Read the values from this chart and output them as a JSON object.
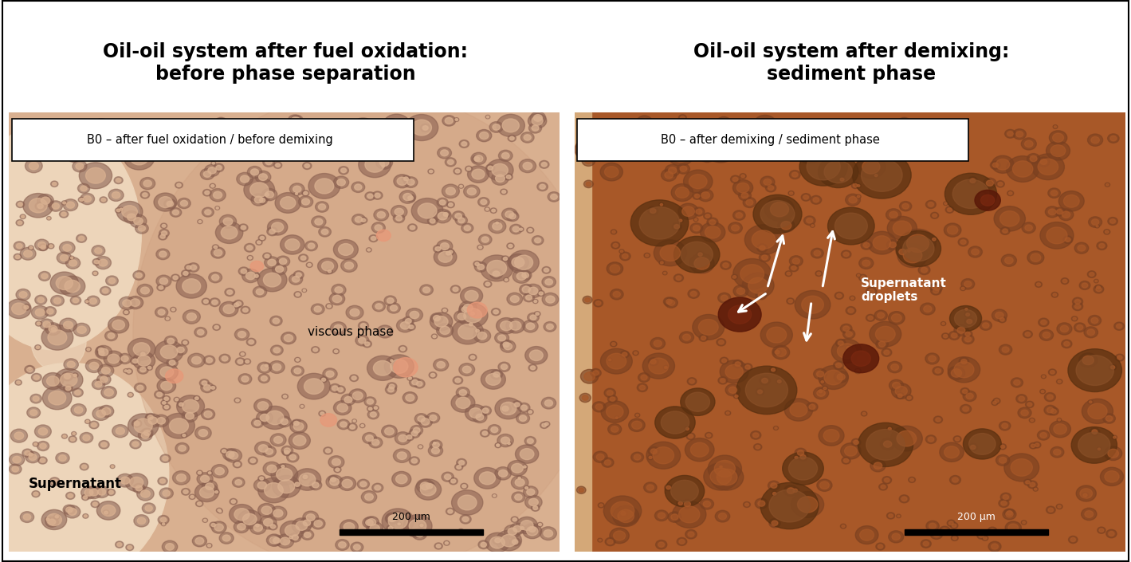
{
  "title_left": "Oil-oil system after fuel oxidation:\nbefore phase separation",
  "title_right": "Oil-oil system after demixing:\nsediment phase",
  "label_left": "B0 – after fuel oxidation / before demixing",
  "label_right": "B0 – after demixing / sediment phase",
  "text_viscous": "viscous phase",
  "text_supernatant": "Supernatant",
  "text_droplets": "Supernatant\ndroplets",
  "scalebar_text": "200 μm",
  "bg_color": "#ffffff",
  "left_bg": "#d9b090",
  "left_supernatant": "#edd5ba",
  "left_droplet_outer": "#8a6050",
  "left_droplet_inner": "#d4a07a",
  "right_bg": "#a85828",
  "right_droplet_outer": "#7a4020",
  "right_droplet_inner": "#9a5830",
  "right_dark_spot": "#6a1810",
  "title_fontsize": 17,
  "label_fontsize": 10.5,
  "annotation_fontsize": 11
}
